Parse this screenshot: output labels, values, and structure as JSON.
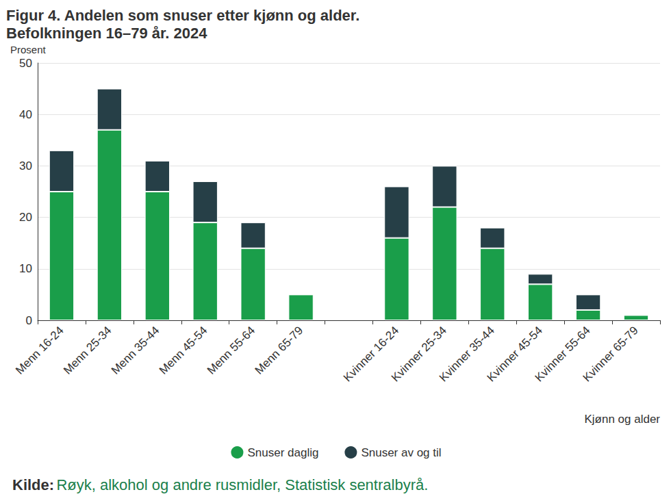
{
  "chart_data": {
    "type": "bar",
    "title": "Figur 4. Andelen som snuser etter kjønn og alder.",
    "subtitle": "Befolkningen 16–79 år. 2024",
    "y_label": "Prosent",
    "x_label": "Kjønn og alder",
    "source_label": "Kilde:",
    "source": "Røyk, alkohol og andre rusmidler, Statistisk sentralbyrå.",
    "categories": [
      "Menn 16-24",
      "Menn 25-34",
      "Menn 35-44",
      "Menn 45-54",
      "Menn 55-64",
      "Menn 65-79",
      null,
      "Kvinner 16-24",
      "Kvinner 25-34",
      "Kvinner 35-44",
      "Kvinner 45-54",
      "Kvinner 55-64",
      "Kvinner 65-79"
    ],
    "series": [
      {
        "name": "Snuser daglig",
        "color": "#1a9e4a",
        "values": [
          25,
          37,
          25,
          19,
          14,
          5,
          null,
          16,
          22,
          14,
          7,
          2,
          1
        ]
      },
      {
        "name": "Snuser av og til",
        "color": "#263f47",
        "values": [
          8,
          8,
          6,
          8,
          5,
          0,
          null,
          10,
          8,
          4,
          2,
          3,
          0
        ]
      }
    ],
    "stacked": true,
    "ylim": [
      0,
      50
    ],
    "yticks": [
      0,
      10,
      20,
      30,
      40,
      50
    ],
    "grid": true,
    "legend": "bottom"
  }
}
